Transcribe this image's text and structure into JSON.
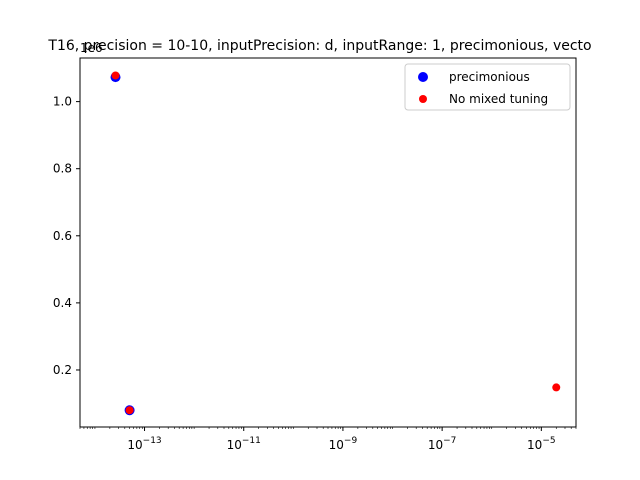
{
  "chart_data": {
    "type": "scatter",
    "title": "T16, precision = 10-10, inputPrecision: d, inputRange: 1, precimonious, vecto",
    "xlabel": "",
    "ylabel": "",
    "xscale": "log",
    "xlim": [
      5e-15,
      5e-05
    ],
    "ylim": [
      30000,
      1130000
    ],
    "y_offset_label": "1e6",
    "x_ticks": [
      {
        "value": 1e-13,
        "label": "10",
        "exp": "−13"
      },
      {
        "value": 1e-11,
        "label": "10",
        "exp": "−11"
      },
      {
        "value": 1e-09,
        "label": "10",
        "exp": "−9"
      },
      {
        "value": 1e-07,
        "label": "10",
        "exp": "−7"
      },
      {
        "value": 1e-05,
        "label": "10",
        "exp": "−5"
      }
    ],
    "y_ticks": [
      {
        "value": 200000,
        "label": "0.2"
      },
      {
        "value": 400000,
        "label": "0.4"
      },
      {
        "value": 600000,
        "label": "0.6"
      },
      {
        "value": 800000,
        "label": "0.8"
      },
      {
        "value": 1000000,
        "label": "1.0"
      }
    ],
    "grid": false,
    "legend_position": "top-right",
    "series": [
      {
        "name": "precimonious",
        "color": "#0000ff",
        "marker_size": "large",
        "points": [
          {
            "x": 2.6e-14,
            "y": 1073000
          },
          {
            "x": 5e-14,
            "y": 80000
          }
        ]
      },
      {
        "name": "No mixed tuning",
        "color": "#ff0000",
        "marker_size": "small",
        "points": [
          {
            "x": 2.6e-14,
            "y": 1078000
          },
          {
            "x": 5e-14,
            "y": 80000
          },
          {
            "x": 2e-05,
            "y": 148000
          }
        ]
      }
    ]
  }
}
